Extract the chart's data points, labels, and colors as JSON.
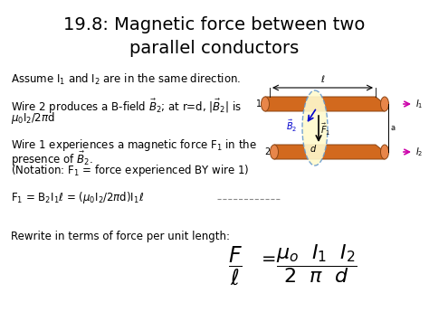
{
  "background_color": "#ffffff",
  "text_color": "#000000",
  "title_line1": "19.8: Magnetic force between two",
  "title_line2": "parallel conductors",
  "title_fontsize": 14,
  "body_fontsize": 8.5,
  "formula_fontsize": 14,
  "wire_body_color": "#D2691E",
  "wire_dark_color": "#8B4513",
  "wire_light_color": "#E8864A",
  "ellipse_fill": "#FFFACD",
  "ellipse_edge": "#6699CC",
  "b2_color": "#0000CC",
  "f1_color": "#000000",
  "current_arrow_color": "#CC00AA",
  "line_color": "#000000"
}
